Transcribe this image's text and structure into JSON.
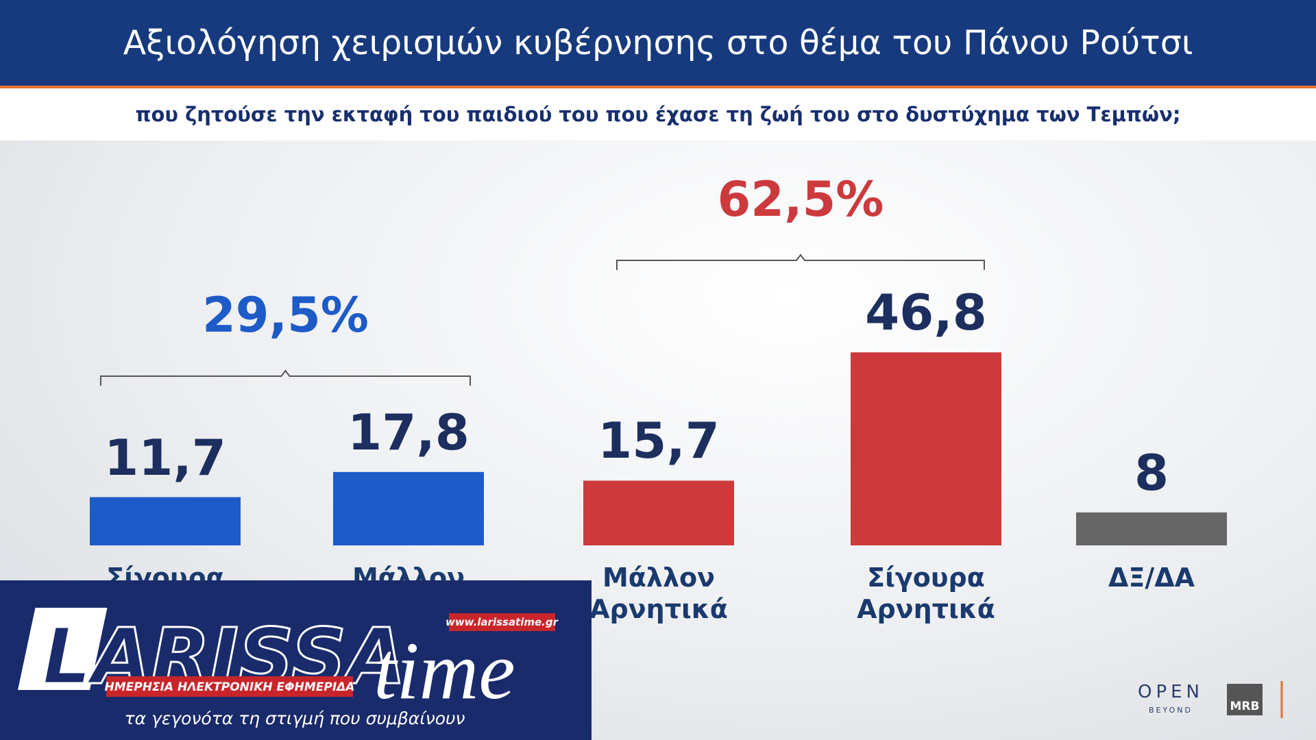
{
  "chart_data": {
    "type": "bar",
    "title": "Αξιολόγηση χειρισμών κυβέρνησης στο θέμα του Πάνου Ρούτσι",
    "subtitle": "που ζητούσε την εκταφή του παιδιού του που έχασε τη ζωή του στο δυστύχημα των Τεμπών;",
    "categories": [
      "Σίγουρα Θετικά",
      "Μάλλον Θετικά",
      "Μάλλον Αρνητικά",
      "Σίγουρα Αρνητικά",
      "ΔΞ/ΔΑ"
    ],
    "values": [
      11.7,
      17.8,
      15.7,
      46.8,
      8
    ],
    "value_labels": [
      "11,7",
      "17,8",
      "15,7",
      "46,8",
      "8"
    ],
    "colors": [
      "#1d5bc8",
      "#1d5bc8",
      "#cc3a3d",
      "#cc3a3d",
      "#666666"
    ],
    "annotations": [
      {
        "text": "29,5%",
        "color": "#1d5bc8"
      },
      {
        "text": "62,5%",
        "color": "#cc3a3d"
      }
    ]
  },
  "logo": {
    "name": "LARISSA",
    "suffix": "time",
    "url": "www.larissatime.gr",
    "tagline": "ΗΜΕΡΗΣΙΑ ΗΛΕΚΤΡΟΝΙΚΗ ΕΦΗΜΕΡΙΔΑ",
    "motto": "τα γεγονότα τη στιγμή που συμβαίνουν"
  },
  "branding": {
    "channel": "OPEN",
    "channel_sub": "BEYOND",
    "pollster": "MRB"
  }
}
